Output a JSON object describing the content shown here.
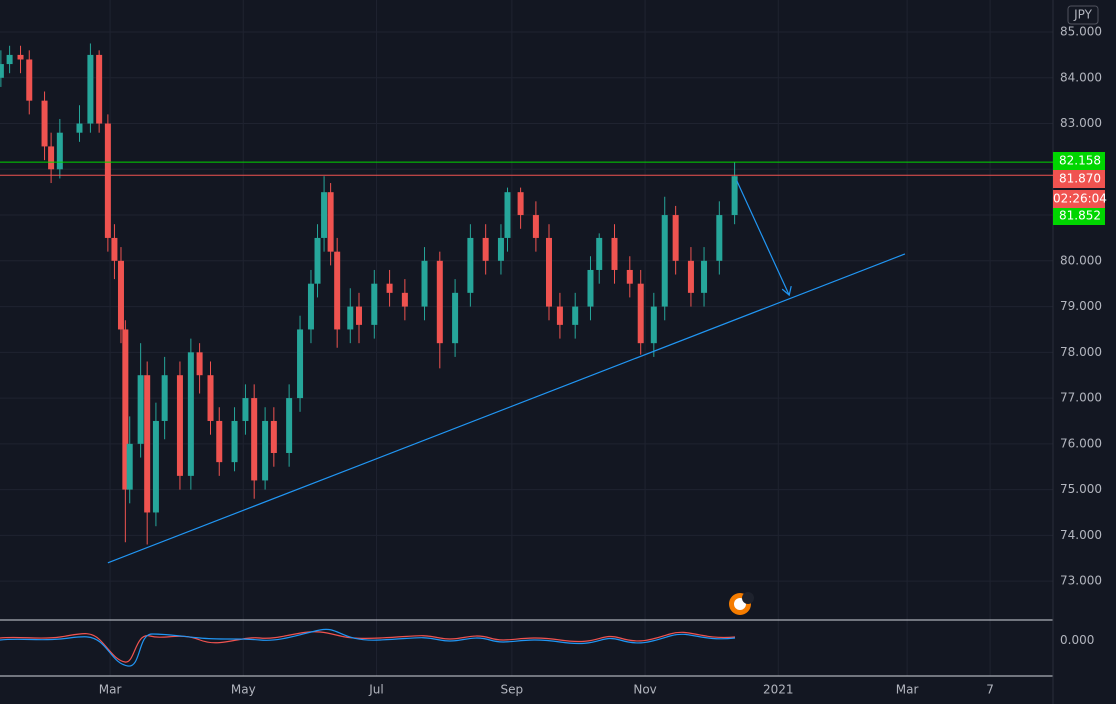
{
  "chart_data": {
    "type": "candlestick",
    "currency": "JPY",
    "x": [
      10,
      14,
      19,
      23,
      30,
      33,
      37,
      46,
      51,
      55,
      59,
      62,
      65,
      67,
      69,
      74,
      77,
      81,
      85,
      92,
      97,
      101,
      106,
      110,
      117,
      122,
      126,
      131,
      135,
      142,
      147,
      152,
      155,
      158,
      161,
      164,
      170,
      174,
      181,
      188,
      195,
      204,
      211,
      218,
      225,
      232,
      239,
      242,
      248,
      255,
      261,
      266,
      273,
      280,
      284,
      291,
      298,
      303,
      309,
      314,
      319,
      326,
      332,
      339,
      346
    ],
    "open": [
      84.0,
      84.3,
      84.5,
      84.4,
      83.5,
      82.5,
      82.0,
      82.8,
      83.0,
      84.5,
      83.0,
      80.5,
      80.0,
      78.5,
      75.0,
      76.0,
      77.5,
      74.5,
      76.5,
      77.5,
      75.3,
      78.0,
      77.5,
      76.5,
      75.6,
      76.5,
      77.0,
      75.2,
      76.5,
      75.8,
      77.0,
      78.5,
      79.5,
      80.5,
      81.5,
      80.2,
      78.5,
      79.0,
      78.6,
      79.5,
      79.3,
      79.0,
      80.0,
      78.2,
      79.3,
      80.5,
      80.0,
      80.5,
      81.5,
      81.0,
      80.5,
      79.0,
      78.6,
      79.0,
      79.8,
      80.5,
      79.8,
      79.5,
      78.2,
      79.0,
      81.0,
      80.0,
      79.3,
      80.0,
      81.0
    ],
    "high": [
      84.6,
      84.7,
      84.7,
      84.6,
      83.7,
      82.8,
      83.1,
      83.4,
      84.75,
      84.6,
      83.2,
      80.8,
      80.3,
      78.7,
      76.6,
      78.2,
      77.8,
      76.9,
      77.9,
      77.8,
      78.3,
      78.2,
      77.8,
      76.8,
      76.8,
      77.3,
      77.3,
      76.8,
      76.8,
      77.3,
      78.8,
      79.8,
      80.8,
      81.85,
      81.7,
      80.5,
      79.4,
      79.3,
      79.8,
      79.8,
      79.6,
      80.3,
      80.2,
      79.6,
      80.8,
      80.8,
      80.8,
      81.6,
      81.6,
      81.3,
      80.8,
      79.3,
      79.3,
      80.1,
      80.6,
      80.8,
      80.1,
      79.8,
      79.3,
      81.4,
      81.2,
      80.3,
      80.3,
      81.3,
      82.16
    ],
    "low": [
      83.8,
      84.1,
      84.1,
      83.2,
      82.2,
      81.7,
      81.8,
      82.6,
      82.8,
      82.8,
      80.2,
      79.6,
      78.2,
      73.85,
      74.7,
      75.7,
      73.8,
      74.2,
      76.1,
      75.0,
      75.0,
      77.1,
      76.2,
      75.3,
      75.4,
      76.2,
      74.8,
      75.0,
      75.5,
      75.5,
      76.7,
      78.2,
      79.2,
      80.2,
      79.9,
      78.1,
      78.2,
      78.2,
      78.3,
      79.0,
      78.7,
      78.7,
      77.65,
      77.9,
      79.0,
      79.7,
      79.7,
      80.2,
      80.7,
      80.2,
      78.7,
      78.3,
      78.3,
      78.7,
      79.5,
      79.5,
      79.2,
      77.95,
      77.9,
      78.7,
      79.7,
      79.0,
      79.0,
      79.7,
      80.8
    ],
    "close": [
      84.3,
      84.5,
      84.4,
      83.5,
      82.5,
      82.0,
      82.8,
      83.0,
      84.5,
      83.0,
      80.5,
      80.0,
      78.5,
      75.0,
      76.0,
      77.5,
      74.5,
      76.5,
      77.5,
      75.3,
      78.0,
      77.5,
      76.5,
      75.6,
      76.5,
      77.0,
      75.2,
      76.5,
      75.8,
      77.0,
      78.5,
      79.5,
      80.5,
      81.5,
      80.2,
      78.5,
      79.0,
      78.6,
      79.5,
      79.3,
      79.0,
      80.0,
      78.2,
      79.3,
      80.5,
      80.0,
      80.5,
      81.5,
      81.0,
      80.5,
      79.0,
      78.6,
      79.0,
      79.8,
      80.5,
      79.8,
      79.5,
      78.2,
      79.0,
      81.0,
      80.0,
      79.3,
      80.0,
      81.0,
      81.85
    ],
    "up_color": "#26a69a",
    "down_color": "#ef5350",
    "xlim": [
      9.6,
      491.8
    ],
    "xticks": [
      {
        "value": 60,
        "label": "Mar"
      },
      {
        "value": 121,
        "label": "May"
      },
      {
        "value": 182,
        "label": "Jul"
      },
      {
        "value": 244,
        "label": "Sep"
      },
      {
        "value": 305,
        "label": "Nov"
      },
      {
        "value": 366,
        "label": "2021"
      },
      {
        "value": 425,
        "label": "Mar"
      },
      {
        "value": 463,
        "label": "7"
      }
    ],
    "ylim": [
      72.15,
      85.7
    ],
    "yticks": [
      {
        "value": 85,
        "label": "85.000"
      },
      {
        "value": 84,
        "label": "84.000"
      },
      {
        "value": 83,
        "label": "83.000"
      },
      {
        "value": 82,
        "label": "82.000"
      },
      {
        "value": 81,
        "label": "81.000"
      },
      {
        "value": 80,
        "label": "80.000"
      },
      {
        "value": 79,
        "label": "79.000"
      },
      {
        "value": 78,
        "label": "78.000"
      },
      {
        "value": 77,
        "label": "77.000"
      },
      {
        "value": 76,
        "label": "76.000"
      },
      {
        "value": 75,
        "label": "75.000"
      },
      {
        "value": 74,
        "label": "74.000"
      },
      {
        "value": 73,
        "label": "73.000"
      }
    ],
    "grid": true,
    "levels": [
      {
        "value": 82.158,
        "label": "82.158",
        "color": "#00d600",
        "line": true
      },
      {
        "value": 81.87,
        "label": "81.870",
        "color": "#f05350",
        "line": true
      },
      {
        "value": 81.852,
        "label": "81.852",
        "color": "#00d600",
        "line": false
      }
    ],
    "countdown": "02:26:04",
    "trendline": {
      "x": [
        59,
        424
      ],
      "y": [
        73.4,
        80.15
      ],
      "color": "#2196f3"
    },
    "arrow": {
      "x": [
        347,
        371
      ],
      "y": [
        81.75,
        79.25
      ],
      "color": "#2196f3"
    },
    "osc_ylim": [
      -0.65,
      0.35
    ],
    "osc_yticks": [
      {
        "value": 0,
        "label": "0.000"
      }
    ]
  }
}
